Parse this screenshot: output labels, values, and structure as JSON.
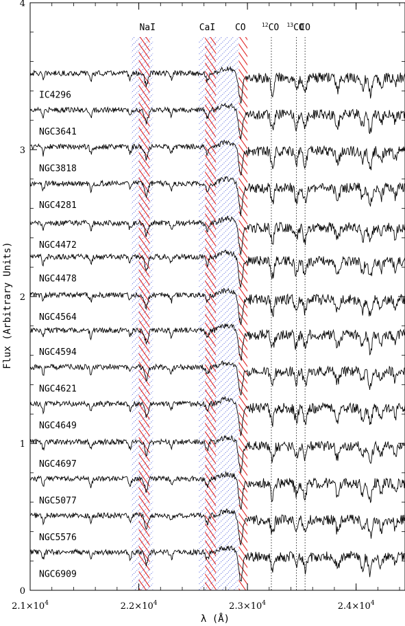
{
  "chart_data": {
    "type": "line",
    "xlabel": "λ (Å)",
    "ylabel": "Flux (Arbitrary Units)",
    "xlim": [
      21000,
      24450
    ],
    "ylim": [
      0,
      4
    ],
    "x_ticks": [
      {
        "value": 21000,
        "mantissa": "2.1",
        "base": "×10",
        "exp": "4"
      },
      {
        "value": 22000,
        "mantissa": "2.2",
        "base": "×10",
        "exp": "4"
      },
      {
        "value": 23000,
        "mantissa": "2.3",
        "base": "×10",
        "exp": "4"
      },
      {
        "value": 24000,
        "mantissa": "2.4",
        "base": "×10",
        "exp": "4"
      }
    ],
    "y_ticks": [
      {
        "value": 0,
        "label": "0"
      },
      {
        "value": 1,
        "label": "1"
      },
      {
        "value": 2,
        "label": "2"
      },
      {
        "value": 3,
        "label": "3"
      },
      {
        "value": 4,
        "label": "4"
      }
    ],
    "bands": [
      {
        "kind": "continuum",
        "x0": 21930,
        "x1": 22130
      },
      {
        "kind": "feature",
        "x0": 22000,
        "x1": 22100
      },
      {
        "kind": "continuum",
        "x0": 22550,
        "x1": 22700
      },
      {
        "kind": "feature",
        "x0": 22610,
        "x1": 22710
      },
      {
        "kind": "continuum",
        "x0": 22700,
        "x1": 22920
      },
      {
        "kind": "feature",
        "x0": 22920,
        "x1": 23000
      }
    ],
    "feature_labels": [
      {
        "text": "NaI",
        "prefix": "",
        "x": 22080
      },
      {
        "text": "CaI",
        "prefix": "",
        "x": 22630
      },
      {
        "text": "CO",
        "prefix": "",
        "x": 22935
      },
      {
        "text": "CO",
        "prefix": "12",
        "x": 23220
      },
      {
        "text": "CO",
        "prefix": "13",
        "x": 23450
      },
      {
        "text": "CO",
        "prefix": "",
        "x": 23530
      }
    ],
    "dotted_lines": [
      23220,
      23450,
      23530
    ],
    "series": [
      {
        "name": "IC4296",
        "offset": 3.52
      },
      {
        "name": "NGC3641",
        "offset": 3.27
      },
      {
        "name": "NGC3818",
        "offset": 3.02
      },
      {
        "name": "NGC4281",
        "offset": 2.77
      },
      {
        "name": "NGC4472",
        "offset": 2.5
      },
      {
        "name": "NGC4478",
        "offset": 2.27
      },
      {
        "name": "NGC4564",
        "offset": 2.01
      },
      {
        "name": "NGC4594",
        "offset": 1.77
      },
      {
        "name": "NGC4621",
        "offset": 1.52
      },
      {
        "name": "NGC4649",
        "offset": 1.27
      },
      {
        "name": "NGC4697",
        "offset": 1.01
      },
      {
        "name": "NGC5077",
        "offset": 0.76
      },
      {
        "name": "NGC5576",
        "offset": 0.51
      },
      {
        "name": "NGC6909",
        "offset": 0.26
      }
    ]
  }
}
